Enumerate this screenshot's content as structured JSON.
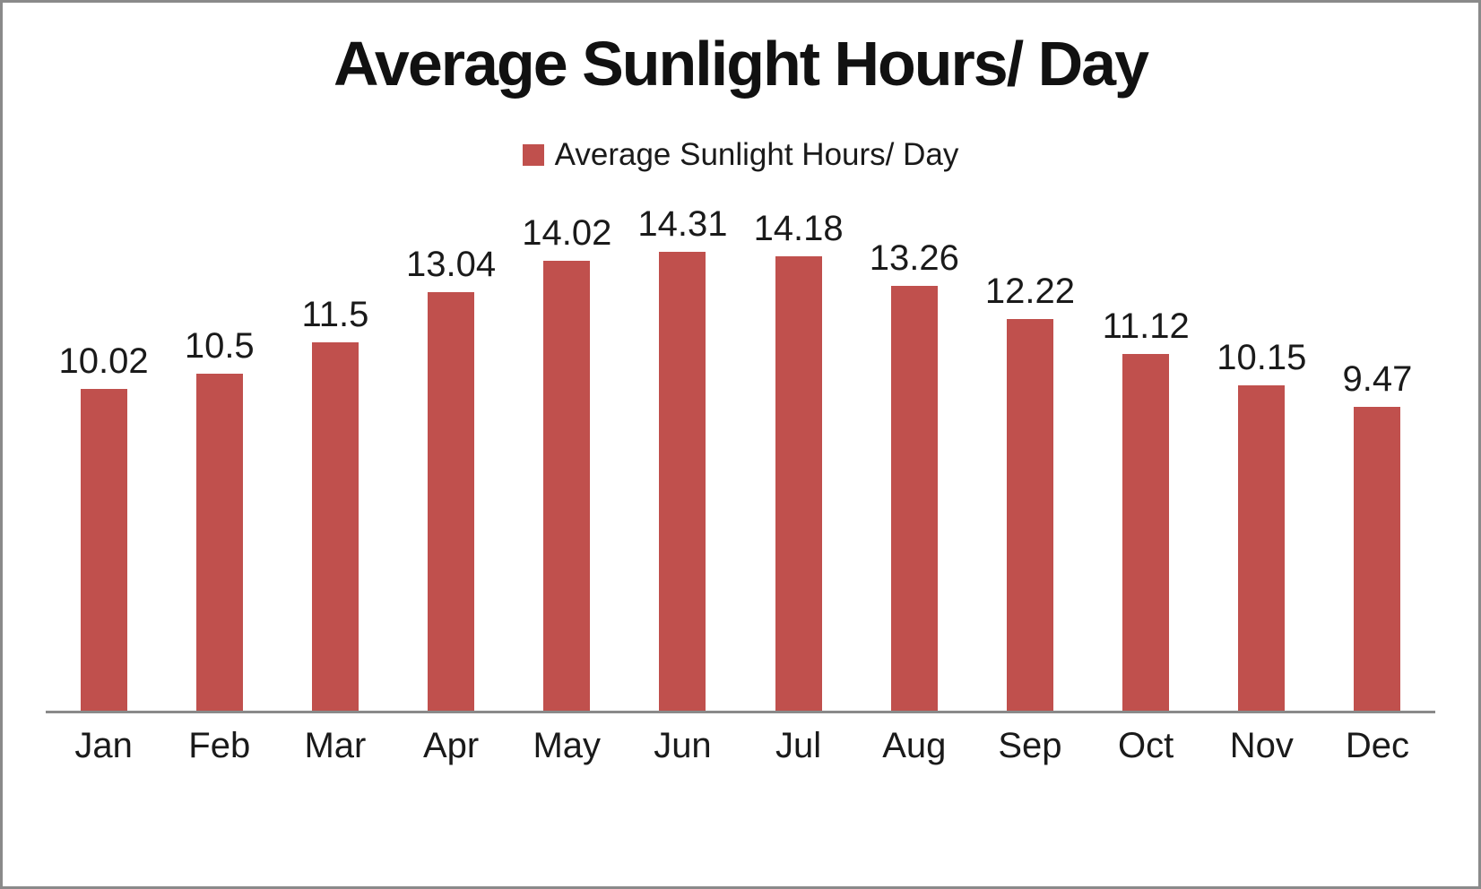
{
  "chart": {
    "title": "Average Sunlight Hours/ Day",
    "legend_label": "Average Sunlight Hours/ Day"
  },
  "colors": {
    "bar": "#c0504d",
    "axis_line": "#8a8a8a",
    "frame_border": "#8a8a8a",
    "text": "#1a1a1a"
  },
  "chart_data": {
    "type": "bar",
    "title": "Average Sunlight Hours/ Day",
    "series_name": "Average Sunlight Hours/ Day",
    "categories": [
      "Jan",
      "Feb",
      "Mar",
      "Apr",
      "May",
      "Jun",
      "Jul",
      "Aug",
      "Sep",
      "Oct",
      "Nov",
      "Dec"
    ],
    "values": [
      10.02,
      10.5,
      11.5,
      13.04,
      14.02,
      14.31,
      14.18,
      13.26,
      12.22,
      11.12,
      10.15,
      9.47
    ],
    "value_labels": [
      "10.02",
      "10.5",
      "11.5",
      "13.04",
      "14.02",
      "14.31",
      "14.18",
      "13.26",
      "12.22",
      "11.12",
      "10.15",
      "9.47"
    ],
    "xlabel": "",
    "ylabel": "",
    "grid": false,
    "data_labels": true,
    "legend_position": "top-center",
    "bar_color": "#c0504d"
  }
}
